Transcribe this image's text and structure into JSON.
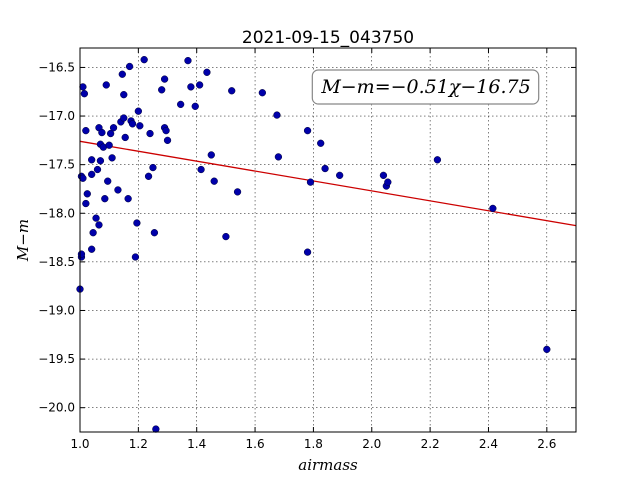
{
  "chart_data": {
    "type": "scatter",
    "title": "2021-09-15_043750",
    "xlabel": "airmass",
    "ylabel": "M−m",
    "xlim": [
      1.0,
      2.7
    ],
    "ylim": [
      -20.25,
      -16.3
    ],
    "x_ticks": [
      1.0,
      1.2,
      1.4,
      1.6,
      1.8,
      2.0,
      2.2,
      2.4,
      2.6
    ],
    "x_tick_labels": [
      "1.0",
      "1.2",
      "1.4",
      "1.6",
      "1.8",
      "2.0",
      "2.2",
      "2.4",
      "2.6"
    ],
    "y_ticks": [
      -16.5,
      -17.0,
      -17.5,
      -18.0,
      -18.5,
      -19.0,
      -19.5,
      -20.0
    ],
    "y_tick_labels": [
      "−16.5",
      "−17.0",
      "−17.5",
      "−18.0",
      "−18.5",
      "−19.0",
      "−19.5",
      "−20.0"
    ],
    "grid": true,
    "annotation": "M−m=−0.51χ−16.75",
    "annotation_position": "top-right",
    "fit_line": {
      "slope": -0.51,
      "intercept": -16.75,
      "color": "#cc0000"
    },
    "point_color": "#0000aa",
    "points": [
      {
        "x": 1.0,
        "y": -18.78
      },
      {
        "x": 1.005,
        "y": -18.45
      },
      {
        "x": 1.005,
        "y": -18.42
      },
      {
        "x": 1.005,
        "y": -17.62
      },
      {
        "x": 1.01,
        "y": -17.64
      },
      {
        "x": 1.01,
        "y": -16.7
      },
      {
        "x": 1.015,
        "y": -16.77
      },
      {
        "x": 1.02,
        "y": -17.15
      },
      {
        "x": 1.02,
        "y": -17.9
      },
      {
        "x": 1.025,
        "y": -17.8
      },
      {
        "x": 1.04,
        "y": -17.45
      },
      {
        "x": 1.04,
        "y": -17.6
      },
      {
        "x": 1.04,
        "y": -18.37
      },
      {
        "x": 1.045,
        "y": -18.2
      },
      {
        "x": 1.055,
        "y": -18.05
      },
      {
        "x": 1.06,
        "y": -17.55
      },
      {
        "x": 1.065,
        "y": -18.12
      },
      {
        "x": 1.065,
        "y": -17.12
      },
      {
        "x": 1.07,
        "y": -17.29
      },
      {
        "x": 1.07,
        "y": -17.46
      },
      {
        "x": 1.075,
        "y": -17.17
      },
      {
        "x": 1.08,
        "y": -17.32
      },
      {
        "x": 1.085,
        "y": -17.85
      },
      {
        "x": 1.09,
        "y": -16.68
      },
      {
        "x": 1.095,
        "y": -17.67
      },
      {
        "x": 1.1,
        "y": -17.3
      },
      {
        "x": 1.105,
        "y": -17.18
      },
      {
        "x": 1.11,
        "y": -17.43
      },
      {
        "x": 1.115,
        "y": -17.12
      },
      {
        "x": 1.13,
        "y": -17.76
      },
      {
        "x": 1.14,
        "y": -17.06
      },
      {
        "x": 1.145,
        "y": -16.57
      },
      {
        "x": 1.15,
        "y": -17.02
      },
      {
        "x": 1.15,
        "y": -16.78
      },
      {
        "x": 1.155,
        "y": -17.22
      },
      {
        "x": 1.165,
        "y": -17.85
      },
      {
        "x": 1.17,
        "y": -16.49
      },
      {
        "x": 1.175,
        "y": -17.05
      },
      {
        "x": 1.18,
        "y": -17.08
      },
      {
        "x": 1.19,
        "y": -18.45
      },
      {
        "x": 1.195,
        "y": -18.1
      },
      {
        "x": 1.2,
        "y": -16.95
      },
      {
        "x": 1.205,
        "y": -17.1
      },
      {
        "x": 1.22,
        "y": -16.42
      },
      {
        "x": 1.235,
        "y": -17.62
      },
      {
        "x": 1.24,
        "y": -17.18
      },
      {
        "x": 1.25,
        "y": -17.53
      },
      {
        "x": 1.255,
        "y": -18.2
      },
      {
        "x": 1.26,
        "y": -20.22
      },
      {
        "x": 1.28,
        "y": -16.73
      },
      {
        "x": 1.29,
        "y": -16.62
      },
      {
        "x": 1.29,
        "y": -17.12
      },
      {
        "x": 1.295,
        "y": -17.15
      },
      {
        "x": 1.3,
        "y": -17.25
      },
      {
        "x": 1.345,
        "y": -16.88
      },
      {
        "x": 1.37,
        "y": -16.43
      },
      {
        "x": 1.38,
        "y": -16.7
      },
      {
        "x": 1.395,
        "y": -16.9
      },
      {
        "x": 1.41,
        "y": -16.68
      },
      {
        "x": 1.415,
        "y": -17.55
      },
      {
        "x": 1.435,
        "y": -16.55
      },
      {
        "x": 1.45,
        "y": -17.4
      },
      {
        "x": 1.46,
        "y": -17.67
      },
      {
        "x": 1.5,
        "y": -18.24
      },
      {
        "x": 1.52,
        "y": -16.74
      },
      {
        "x": 1.54,
        "y": -17.78
      },
      {
        "x": 1.625,
        "y": -16.76
      },
      {
        "x": 1.675,
        "y": -16.99
      },
      {
        "x": 1.68,
        "y": -17.42
      },
      {
        "x": 1.78,
        "y": -17.15
      },
      {
        "x": 1.78,
        "y": -18.4
      },
      {
        "x": 1.79,
        "y": -17.68
      },
      {
        "x": 1.825,
        "y": -17.28
      },
      {
        "x": 1.84,
        "y": -17.54
      },
      {
        "x": 1.89,
        "y": -17.61
      },
      {
        "x": 2.04,
        "y": -17.61
      },
      {
        "x": 2.05,
        "y": -17.72
      },
      {
        "x": 2.055,
        "y": -17.68
      },
      {
        "x": 2.225,
        "y": -17.45
      },
      {
        "x": 2.415,
        "y": -17.95
      },
      {
        "x": 2.6,
        "y": -19.4
      }
    ]
  }
}
